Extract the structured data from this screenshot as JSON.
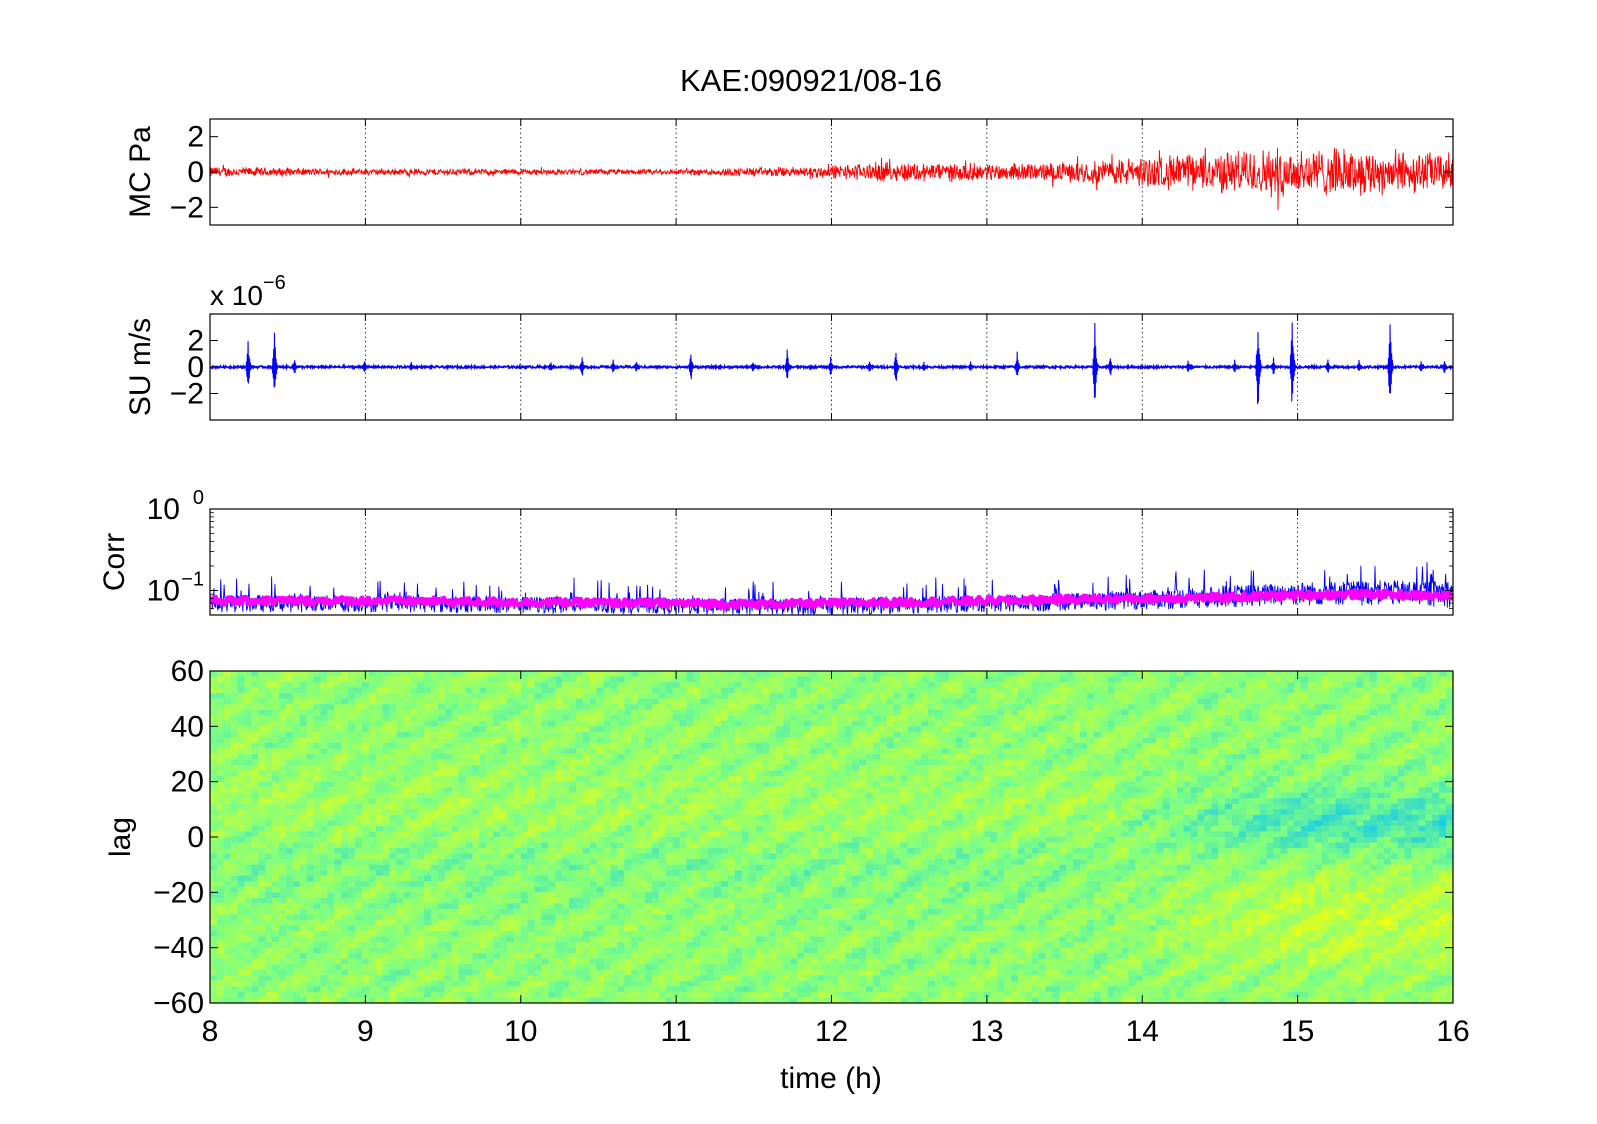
{
  "chart_data": [
    {
      "type": "line",
      "panel": "microphone",
      "title": "KAE:090921/08-16",
      "ylabel": "MC Pa",
      "xlim": [
        8,
        16
      ],
      "ylim": [
        -3,
        3
      ],
      "yticks": [
        {
          "v": -2,
          "label": "−2"
        },
        {
          "v": 0,
          "label": "0"
        },
        {
          "v": 2,
          "label": "2"
        }
      ],
      "grid_x": true,
      "series": [
        {
          "color": "#ff0000",
          "envelope_x": [
            8,
            8.5,
            9,
            9.5,
            10,
            10.5,
            11,
            11.3,
            11.6,
            11.9,
            12.1,
            12.4,
            12.7,
            13,
            13.3,
            13.6,
            13.8,
            14,
            14.2,
            14.4,
            14.6,
            14.8,
            15,
            15.2,
            15.4,
            15.6,
            15.8,
            16
          ],
          "envelope_y": [
            0.35,
            0.25,
            0.2,
            0.22,
            0.2,
            0.18,
            0.18,
            0.25,
            0.3,
            0.38,
            0.5,
            0.65,
            0.6,
            0.55,
            0.55,
            0.65,
            0.85,
            0.95,
            1.1,
            1.2,
            1.4,
            1.5,
            1.55,
            1.5,
            1.45,
            1.4,
            1.3,
            1.2
          ]
        }
      ]
    },
    {
      "type": "line",
      "panel": "seismometer",
      "ylabel": "SU m/s",
      "scale_label": "x 10",
      "scale_exp": "−6",
      "xlim": [
        8,
        16
      ],
      "ylim": [
        -4,
        4
      ],
      "yticks": [
        {
          "v": -2,
          "label": "−2"
        },
        {
          "v": 0,
          "label": "0"
        },
        {
          "v": 2,
          "label": "2"
        }
      ],
      "grid_x": true,
      "series": [
        {
          "color": "#0000ff",
          "base_amplitude": 0.08,
          "spikes_x": [
            8.25,
            8.42,
            8.55,
            9.0,
            9.3,
            10.2,
            10.4,
            10.6,
            10.75,
            11.1,
            11.5,
            11.72,
            12.0,
            12.25,
            12.42,
            12.6,
            12.9,
            13.2,
            13.2,
            13.7,
            13.8,
            14.3,
            14.6,
            14.75,
            14.85,
            14.97,
            15.2,
            15.4,
            15.6,
            15.8,
            15.95
          ],
          "spikes_amp": [
            2.5,
            3.0,
            0.8,
            0.6,
            0.5,
            0.4,
            0.9,
            0.7,
            0.5,
            1.3,
            0.5,
            1.4,
            0.9,
            0.6,
            1.7,
            0.5,
            0.5,
            0.6,
            1.2,
            3.5,
            0.9,
            0.5,
            0.6,
            4.0,
            0.8,
            4.0,
            0.7,
            0.6,
            4.0,
            0.6,
            0.7
          ]
        }
      ]
    },
    {
      "type": "line",
      "panel": "correlation",
      "ylabel": "Corr",
      "yscale": "log",
      "xlim": [
        8,
        16
      ],
      "ylim": [
        0.05,
        1
      ],
      "yticks": [
        {
          "v": 1,
          "base": "10",
          "exp": "0"
        },
        {
          "v": 0.1,
          "base": "10",
          "exp": "−1"
        }
      ],
      "grid_x": true,
      "series": [
        {
          "color": "#0000ff",
          "style": "raw",
          "x": [
            8,
            9,
            10,
            11,
            11.5,
            12,
            12.5,
            13,
            13.5,
            14,
            14.5,
            15,
            15.5,
            16
          ],
          "y": [
            0.075,
            0.075,
            0.072,
            0.07,
            0.068,
            0.07,
            0.072,
            0.075,
            0.078,
            0.08,
            0.085,
            0.09,
            0.09,
            0.085
          ]
        },
        {
          "color": "#ff00ff",
          "style": "smoothed",
          "x": [
            8,
            9,
            10,
            11,
            11.5,
            12,
            12.5,
            13,
            13.5,
            14,
            14.5,
            15,
            15.5,
            16
          ],
          "y": [
            0.075,
            0.075,
            0.072,
            0.07,
            0.068,
            0.07,
            0.072,
            0.075,
            0.078,
            0.08,
            0.082,
            0.088,
            0.09,
            0.085
          ]
        }
      ]
    },
    {
      "type": "heatmap",
      "panel": "cross-correlation",
      "ylabel": "lag",
      "xlabel": "time (h)",
      "xlim": [
        8,
        16
      ],
      "ylim": [
        -60,
        60
      ],
      "xticks": [
        8,
        9,
        10,
        11,
        12,
        13,
        14,
        15,
        16
      ],
      "yticks": [
        {
          "v": 60,
          "label": "60"
        },
        {
          "v": 40,
          "label": "40"
        },
        {
          "v": 20,
          "label": "20"
        },
        {
          "v": 0,
          "label": "0"
        },
        {
          "v": -20,
          "label": "−20"
        },
        {
          "v": -40,
          "label": "−40"
        },
        {
          "v": -60,
          "label": "−60"
        }
      ],
      "colormap": [
        "#00bfff",
        "#40e0c0",
        "#80ff80",
        "#c0ff40",
        "#ffff00",
        "#ff8000"
      ],
      "features": "cyan band near lag 0 after 14 h; yellow band near lag -10 to -40 after 14.5 h"
    }
  ]
}
